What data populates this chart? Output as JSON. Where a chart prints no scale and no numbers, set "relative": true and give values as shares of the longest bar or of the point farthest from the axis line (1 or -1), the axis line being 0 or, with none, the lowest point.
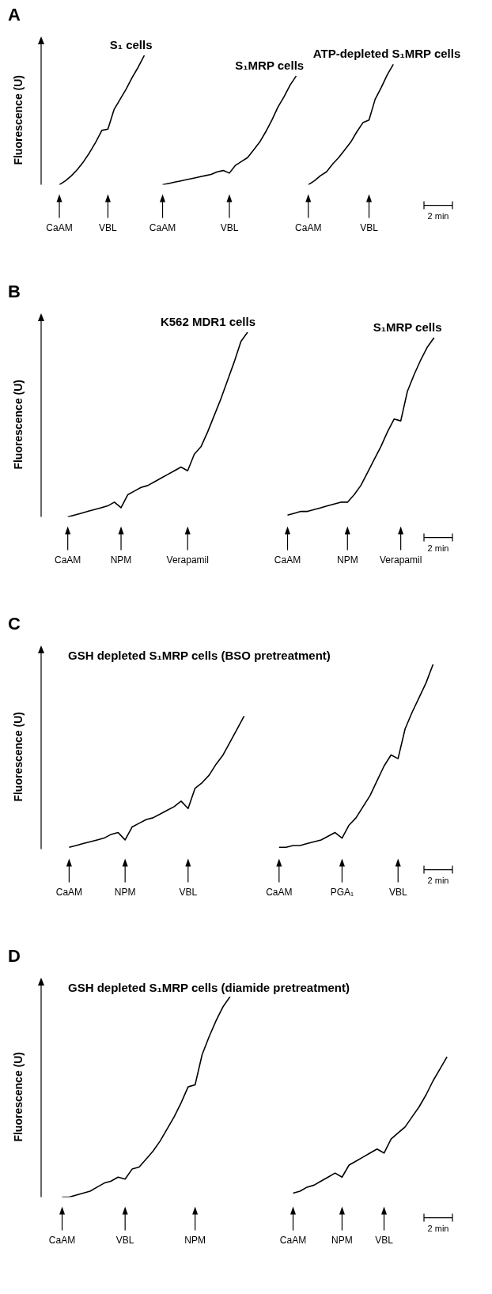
{
  "chart_data": [
    {
      "type": "line",
      "title": "A",
      "ylabel": "Fluorescence (U)",
      "relative": true,
      "tick_labels": "x",
      "marker": "none",
      "categories": [
        null,
        null,
        null,
        "CaAM",
        null,
        null,
        null,
        null,
        null,
        null,
        null,
        "VBL",
        null,
        null,
        null,
        null,
        null,
        null,
        null,
        null,
        "CaAM",
        null,
        null,
        null,
        null,
        null,
        null,
        null,
        null,
        null,
        null,
        "VBL",
        null,
        null,
        null,
        null,
        null,
        null,
        null,
        null,
        null,
        null,
        null,
        null,
        "CaAM",
        null,
        null,
        null,
        null,
        null,
        null,
        null,
        null,
        null,
        "VBL",
        null,
        null,
        null,
        null,
        null,
        null,
        null,
        null,
        null,
        null,
        null,
        null,
        null,
        null
      ],
      "series": [
        {
          "name": "S₁ cells",
          "color": "#000000",
          "values": [
            null,
            null,
            null,
            0,
            0.03,
            0.07,
            0.12,
            0.18,
            0.25,
            0.33,
            0.42,
            0.43,
            0.58,
            0.66,
            0.74,
            0.83,
            0.91,
            1,
            null,
            null,
            null,
            null,
            null,
            null,
            null,
            null,
            null,
            null,
            null,
            null,
            null,
            null,
            null,
            null,
            null,
            null,
            null,
            null,
            null,
            null,
            null,
            null,
            null,
            null,
            null,
            null,
            null,
            null,
            null,
            null,
            null,
            null,
            null,
            null,
            null,
            null,
            null,
            null,
            null,
            null,
            null,
            null,
            null,
            null,
            null,
            null,
            null,
            null,
            null
          ]
        },
        {
          "name": "S₁MRP cells",
          "color": "#000000",
          "values": [
            null,
            null,
            null,
            null,
            null,
            null,
            null,
            null,
            null,
            null,
            null,
            null,
            null,
            null,
            null,
            null,
            null,
            null,
            null,
            null,
            0,
            0.01,
            0.02,
            0.03,
            0.04,
            0.05,
            0.06,
            0.07,
            0.08,
            0.1,
            0.11,
            0.09,
            0.15,
            0.18,
            0.21,
            0.27,
            0.33,
            0.41,
            0.5,
            0.6,
            0.68,
            0.77,
            0.84,
            null,
            null,
            null,
            null,
            null,
            null,
            null,
            null,
            null,
            null,
            null,
            null,
            null,
            null,
            null,
            null,
            null,
            null,
            null,
            null,
            null,
            null,
            null,
            null,
            null,
            null
          ]
        },
        {
          "name": "ATP-depleted S₁MRP cells",
          "color": "#000000",
          "values": [
            null,
            null,
            null,
            null,
            null,
            null,
            null,
            null,
            null,
            null,
            null,
            null,
            null,
            null,
            null,
            null,
            null,
            null,
            null,
            null,
            null,
            null,
            null,
            null,
            null,
            null,
            null,
            null,
            null,
            null,
            null,
            null,
            null,
            null,
            null,
            null,
            null,
            null,
            null,
            null,
            null,
            null,
            null,
            null,
            0,
            0.03,
            0.07,
            0.1,
            0.16,
            0.21,
            0.27,
            0.33,
            0.41,
            0.48,
            0.5,
            0.66,
            0.75,
            0.85,
            0.93,
            null,
            null,
            null,
            null,
            null,
            null,
            null,
            null,
            null,
            null
          ]
        }
      ],
      "annotations": [
        "2 min"
      ]
    },
    {
      "type": "line",
      "title": "B",
      "ylabel": "Fluorescence (U)",
      "relative": true,
      "tick_labels": "x",
      "marker": "none",
      "categories": [
        null,
        null,
        null,
        null,
        "CaAM",
        null,
        null,
        null,
        null,
        null,
        null,
        null,
        "NPM",
        null,
        null,
        null,
        null,
        null,
        null,
        null,
        null,
        null,
        "Verapamil",
        null,
        null,
        null,
        null,
        null,
        null,
        null,
        null,
        null,
        null,
        null,
        null,
        null,
        null,
        "CaAM",
        null,
        null,
        null,
        null,
        null,
        null,
        null,
        null,
        "NPM",
        null,
        null,
        null,
        null,
        null,
        null,
        null,
        "Verapamil",
        null,
        null,
        null,
        null,
        null,
        null,
        null,
        null
      ],
      "series": [
        {
          "name": "K562 MDR1 cells",
          "color": "#000000",
          "values": [
            null,
            null,
            null,
            null,
            0,
            0.01,
            0.02,
            0.03,
            0.04,
            0.05,
            0.06,
            0.08,
            0.05,
            0.12,
            0.14,
            0.16,
            0.17,
            0.19,
            0.21,
            0.23,
            0.25,
            0.27,
            0.25,
            0.34,
            0.38,
            0.46,
            0.55,
            0.64,
            0.74,
            0.84,
            0.95,
            1,
            null,
            null,
            null,
            null,
            null,
            null,
            null,
            null,
            null,
            null,
            null,
            null,
            null,
            null,
            null,
            null,
            null,
            null,
            null,
            null,
            null,
            null,
            null,
            null,
            null,
            null,
            null,
            null,
            null,
            null,
            null
          ]
        },
        {
          "name": "S₁MRP cells",
          "color": "#000000",
          "values": [
            null,
            null,
            null,
            null,
            null,
            null,
            null,
            null,
            null,
            null,
            null,
            null,
            null,
            null,
            null,
            null,
            null,
            null,
            null,
            null,
            null,
            null,
            null,
            null,
            null,
            null,
            null,
            null,
            null,
            null,
            null,
            null,
            null,
            null,
            null,
            null,
            null,
            0.01,
            0.02,
            0.03,
            0.03,
            0.04,
            0.05,
            0.06,
            0.07,
            0.08,
            0.08,
            0.12,
            0.17,
            0.24,
            0.31,
            0.38,
            0.46,
            0.53,
            0.52,
            0.68,
            0.77,
            0.85,
            0.92,
            0.97,
            null,
            null,
            null
          ]
        }
      ],
      "annotations": [
        "2 min"
      ]
    },
    {
      "type": "line",
      "title": "C",
      "subtitle": "GSH depleted S₁MRP cells (BSO pretreatment)",
      "ylabel": "Fluorescence (U)",
      "relative": true,
      "tick_labels": "x",
      "marker": "none",
      "categories": [
        null,
        null,
        null,
        null,
        "CaAM",
        null,
        null,
        null,
        null,
        null,
        null,
        null,
        "NPM",
        null,
        null,
        null,
        null,
        null,
        null,
        null,
        null,
        "VBL",
        null,
        null,
        null,
        null,
        null,
        null,
        null,
        null,
        null,
        null,
        null,
        null,
        "CaAM",
        null,
        null,
        null,
        null,
        null,
        null,
        null,
        null,
        "PGA₁",
        null,
        null,
        null,
        null,
        null,
        null,
        null,
        "VBL",
        null,
        null,
        null,
        null,
        null,
        null,
        null,
        null
      ],
      "series": [
        {
          "color": "#000000",
          "values": [
            null,
            null,
            null,
            null,
            0.01,
            0.02,
            0.03,
            0.04,
            0.05,
            0.06,
            0.08,
            0.09,
            0.05,
            0.12,
            0.14,
            0.16,
            0.17,
            0.19,
            0.21,
            0.23,
            0.26,
            0.22,
            0.33,
            0.36,
            0.4,
            0.46,
            0.51,
            0.58,
            0.65,
            0.72,
            null,
            null,
            null,
            null,
            null,
            null,
            null,
            null,
            null,
            null,
            null,
            null,
            null,
            null,
            null,
            null,
            null,
            null,
            null,
            null,
            null,
            null,
            null,
            null,
            null,
            null,
            null,
            null,
            null,
            null
          ]
        },
        {
          "color": "#000000",
          "values": [
            null,
            null,
            null,
            null,
            null,
            null,
            null,
            null,
            null,
            null,
            null,
            null,
            null,
            null,
            null,
            null,
            null,
            null,
            null,
            null,
            null,
            null,
            null,
            null,
            null,
            null,
            null,
            null,
            null,
            null,
            null,
            null,
            null,
            null,
            0.01,
            0.01,
            0.02,
            0.02,
            0.03,
            0.04,
            0.05,
            0.07,
            0.09,
            0.06,
            0.13,
            0.17,
            0.23,
            0.29,
            0.37,
            0.45,
            0.51,
            0.49,
            0.65,
            0.74,
            0.82,
            0.9,
            1,
            null,
            null,
            null
          ]
        }
      ],
      "annotations": [
        "2 min"
      ]
    },
    {
      "type": "line",
      "title": "D",
      "subtitle": "GSH depleted S₁MRP cells (diamide pretreatment)",
      "ylabel": "Fluorescence (U)",
      "relative": true,
      "tick_labels": "x",
      "marker": "none",
      "categories": [
        null,
        null,
        null,
        "CaAM",
        null,
        null,
        null,
        null,
        null,
        null,
        null,
        null,
        "VBL",
        null,
        null,
        null,
        null,
        null,
        null,
        null,
        null,
        null,
        "NPM",
        null,
        null,
        null,
        null,
        null,
        null,
        null,
        null,
        null,
        null,
        null,
        null,
        null,
        "CaAM",
        null,
        null,
        null,
        null,
        null,
        null,
        "NPM",
        null,
        null,
        null,
        null,
        null,
        "VBL",
        null,
        null,
        null,
        null,
        null,
        null,
        null,
        null,
        null,
        null
      ],
      "series": [
        {
          "color": "#000000",
          "values": [
            null,
            null,
            null,
            0,
            0,
            0.01,
            0.02,
            0.03,
            0.05,
            0.07,
            0.08,
            0.1,
            0.09,
            0.14,
            0.15,
            0.19,
            0.23,
            0.28,
            0.34,
            0.4,
            0.47,
            0.55,
            0.56,
            0.71,
            0.8,
            0.88,
            0.95,
            1,
            null,
            null,
            null,
            null,
            null,
            null,
            null,
            null,
            null,
            null,
            null,
            null,
            null,
            null,
            null,
            null,
            null,
            null,
            null,
            null,
            null,
            null,
            null,
            null,
            null,
            null,
            null,
            null,
            null,
            null,
            null,
            null
          ]
        },
        {
          "color": "#000000",
          "values": [
            null,
            null,
            null,
            null,
            null,
            null,
            null,
            null,
            null,
            null,
            null,
            null,
            null,
            null,
            null,
            null,
            null,
            null,
            null,
            null,
            null,
            null,
            null,
            null,
            null,
            null,
            null,
            null,
            null,
            null,
            null,
            null,
            null,
            null,
            null,
            null,
            0.02,
            0.03,
            0.05,
            0.06,
            0.08,
            0.1,
            0.12,
            0.1,
            0.16,
            0.18,
            0.2,
            0.22,
            0.24,
            0.22,
            0.29,
            0.32,
            0.35,
            0.4,
            0.45,
            0.51,
            0.58,
            0.64,
            0.7,
            null
          ]
        }
      ],
      "annotations": [
        "2 min"
      ]
    }
  ]
}
